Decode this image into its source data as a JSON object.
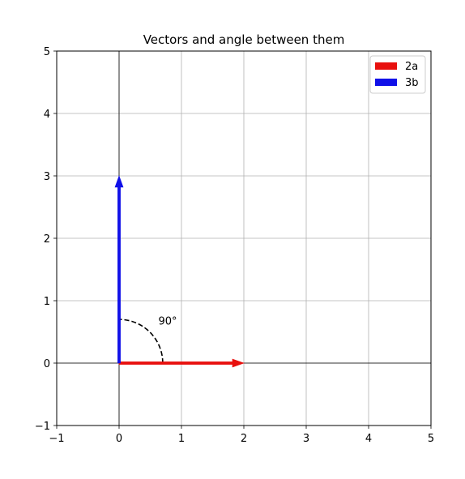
{
  "chart_data": {
    "type": "vector",
    "title": "Vectors and angle between them",
    "xlabel": "",
    "ylabel": "",
    "xlim": [
      -1,
      5
    ],
    "ylim": [
      -1,
      5
    ],
    "x_ticks": [
      -1,
      0,
      1,
      2,
      3,
      4,
      5
    ],
    "y_ticks": [
      -1,
      0,
      1,
      2,
      3,
      4,
      5
    ],
    "x_tick_labels": [
      "−1",
      "0",
      "1",
      "2",
      "3",
      "4",
      "5"
    ],
    "y_tick_labels": [
      "−1",
      "0",
      "1",
      "2",
      "3",
      "4",
      "5"
    ],
    "grid": true,
    "legend_position": "top-right",
    "vectors": [
      {
        "name": "2a",
        "origin": [
          0,
          0
        ],
        "components": [
          2,
          0
        ],
        "color": "#e8100e"
      },
      {
        "name": "3b",
        "origin": [
          0,
          0
        ],
        "components": [
          0,
          3
        ],
        "color": "#1010e8"
      }
    ],
    "angle_arc": {
      "center": [
        0,
        0
      ],
      "radius": 0.7,
      "start_deg": 0,
      "end_deg": 90,
      "style": "dashed",
      "color": "#000000"
    },
    "annotations": [
      {
        "text": "90°",
        "x": 0.63,
        "y": 0.67
      }
    ]
  }
}
